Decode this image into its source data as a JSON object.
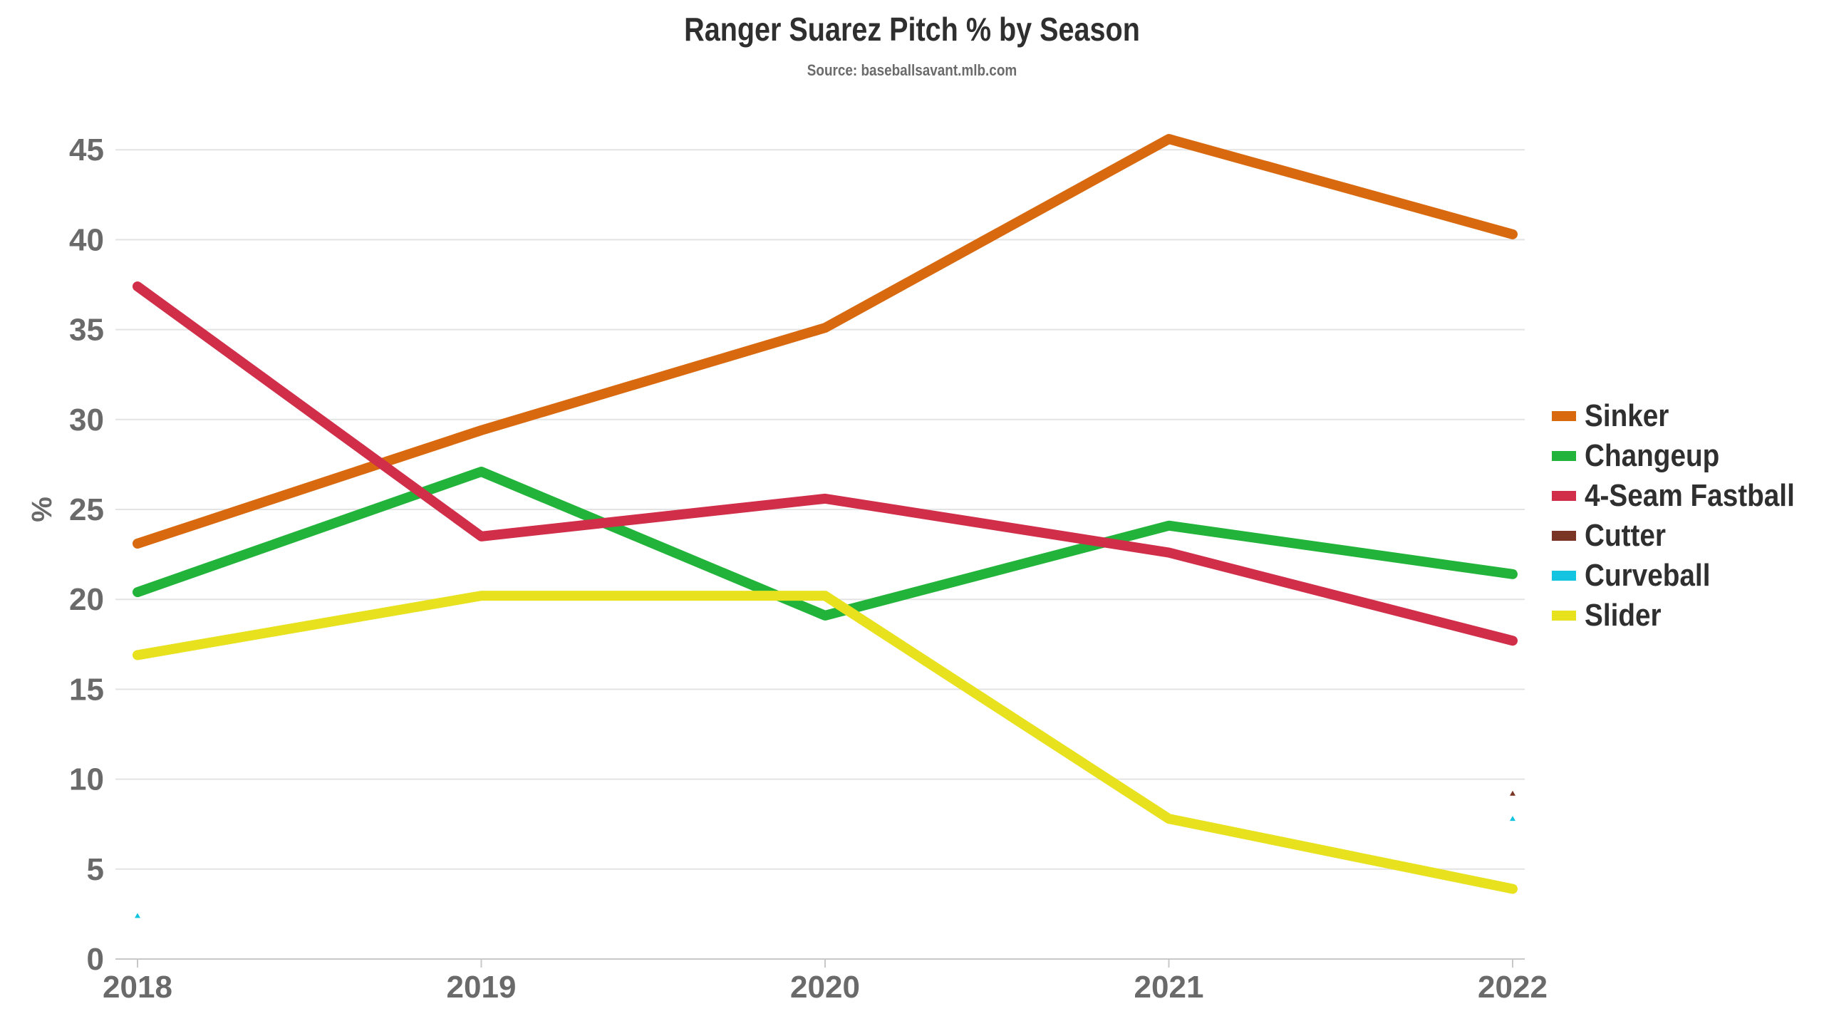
{
  "chart": {
    "title": "Ranger Suarez Pitch % by Season",
    "subtitle": "Source: baseballsavant.mlb.com"
  },
  "chart_data": {
    "type": "line",
    "title": "Ranger Suarez Pitch % by Season",
    "subtitle": "Source: baseballsavant.mlb.com",
    "xlabel": "",
    "ylabel": "%",
    "categories": [
      "2018",
      "2019",
      "2020",
      "2021",
      "2022"
    ],
    "ylim": [
      0,
      47
    ],
    "yticks": [
      0,
      5,
      10,
      15,
      20,
      25,
      30,
      35,
      40,
      45
    ],
    "grid": "horizontal",
    "legend_position": "right",
    "series": [
      {
        "name": "Sinker",
        "color": "#D9690F",
        "values": [
          23.1,
          29.4,
          35.1,
          45.6,
          40.3
        ]
      },
      {
        "name": "Changeup",
        "color": "#22B43A",
        "values": [
          20.4,
          27.1,
          19.1,
          24.1,
          21.4
        ]
      },
      {
        "name": "4-Seam Fastball",
        "color": "#D12E4A",
        "values": [
          37.4,
          23.5,
          25.6,
          22.6,
          17.7
        ]
      },
      {
        "name": "Cutter",
        "color": "#7A3524",
        "values": [
          null,
          null,
          null,
          null,
          9.2
        ]
      },
      {
        "name": "Curveball",
        "color": "#12C4DF",
        "values": [
          2.4,
          null,
          null,
          null,
          7.8
        ]
      },
      {
        "name": "Slider",
        "color": "#E8E21E",
        "values": [
          16.9,
          20.2,
          20.2,
          7.8,
          3.9
        ]
      }
    ]
  }
}
